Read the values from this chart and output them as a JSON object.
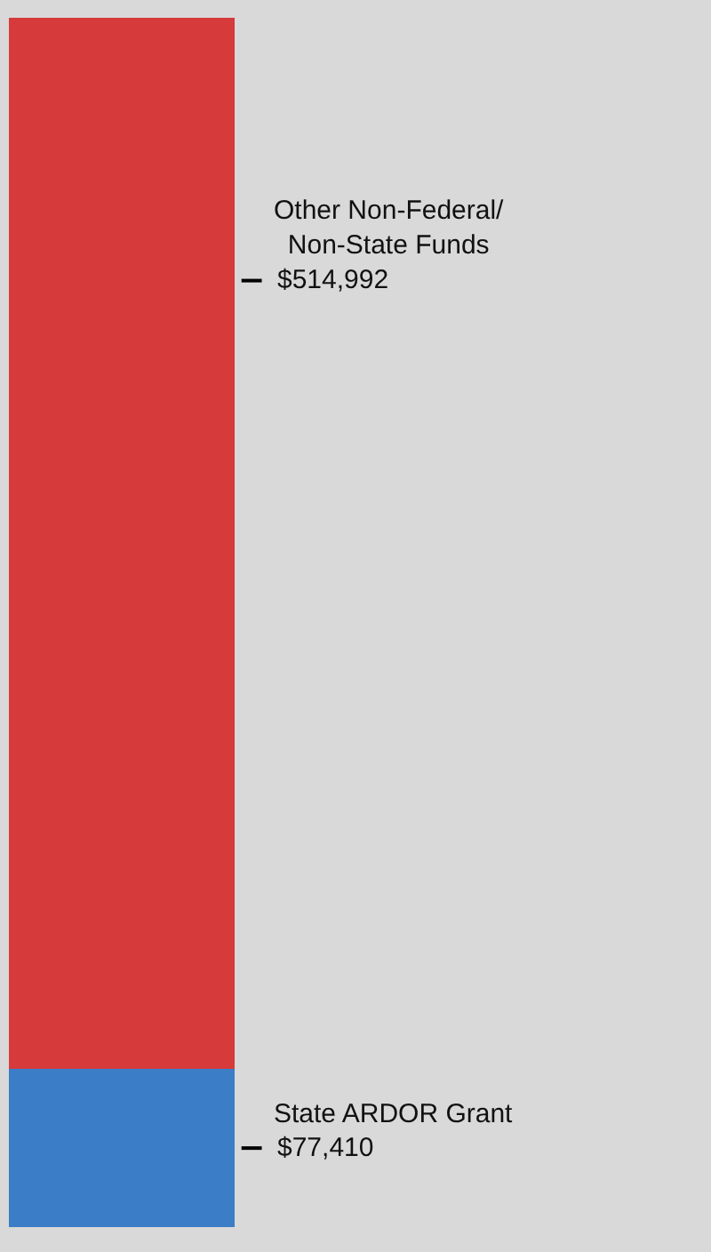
{
  "chart_data": {
    "type": "bar",
    "stacked": true,
    "categories": [
      null
    ],
    "series": [
      {
        "name": "State ARDOR Grant",
        "color": "#3b7dc6",
        "values": [
          77410
        ],
        "value_labels": [
          "$77,410"
        ]
      },
      {
        "name": "Other Non-Federal/ Non-State Funds",
        "color": "#d63a3a",
        "values": [
          514992
        ],
        "value_labels": [
          "$514,992"
        ]
      }
    ]
  }
}
